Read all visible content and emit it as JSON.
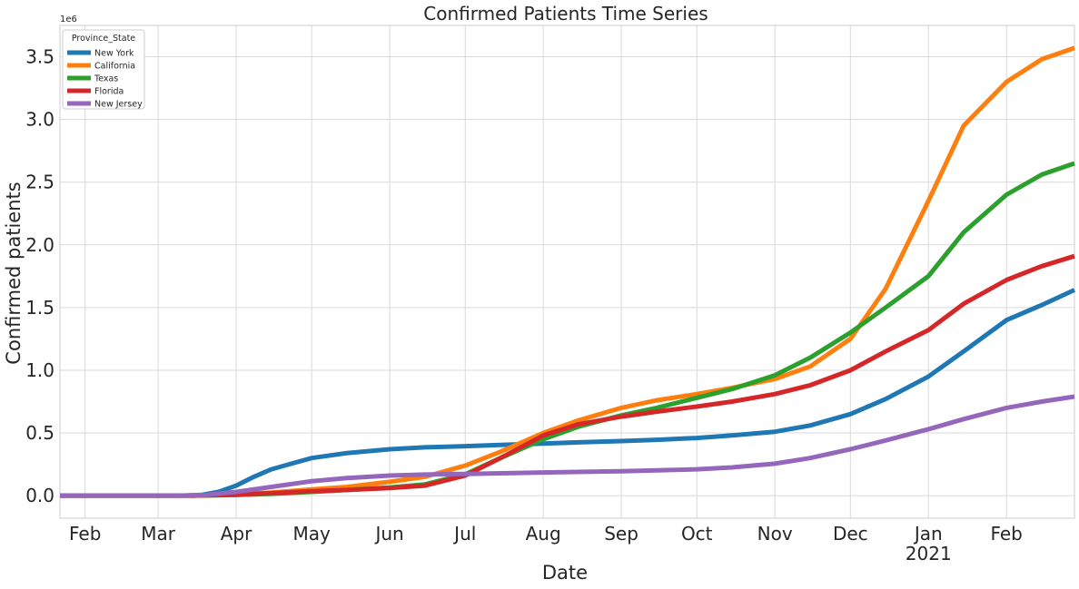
{
  "chart_data": {
    "type": "line",
    "title": "Confirmed Patients Time Series",
    "xlabel": "Date",
    "ylabel": "Confirmed patients",
    "y_offset_label": "1e6",
    "ylim": [
      -0.18,
      3.75
    ],
    "yticks": [
      0.0,
      0.5,
      1.0,
      1.5,
      2.0,
      2.5,
      3.0,
      3.5
    ],
    "ytick_labels": [
      "0.0",
      "0.5",
      "1.0",
      "1.5",
      "2.0",
      "2.5",
      "3.0",
      "3.5"
    ],
    "xlim": [
      "2020-01-22",
      "2021-02-28"
    ],
    "xticks": [
      {
        "date": "2020-02-01",
        "label": "Feb",
        "sub": ""
      },
      {
        "date": "2020-03-01",
        "label": "Mar",
        "sub": ""
      },
      {
        "date": "2020-04-01",
        "label": "Apr",
        "sub": ""
      },
      {
        "date": "2020-05-01",
        "label": "May",
        "sub": ""
      },
      {
        "date": "2020-06-01",
        "label": "Jun",
        "sub": ""
      },
      {
        "date": "2020-07-01",
        "label": "Jul",
        "sub": ""
      },
      {
        "date": "2020-08-01",
        "label": "Aug",
        "sub": ""
      },
      {
        "date": "2020-09-01",
        "label": "Sep",
        "sub": ""
      },
      {
        "date": "2020-10-01",
        "label": "Oct",
        "sub": ""
      },
      {
        "date": "2020-11-01",
        "label": "Nov",
        "sub": ""
      },
      {
        "date": "2020-12-01",
        "label": "Dec",
        "sub": ""
      },
      {
        "date": "2021-01-01",
        "label": "Jan",
        "sub": "2021"
      },
      {
        "date": "2021-02-01",
        "label": "Feb",
        "sub": ""
      }
    ],
    "grid": true,
    "legend": {
      "title": "Province_State",
      "placement": "upper-left"
    },
    "series": [
      {
        "name": "New York",
        "color": "#1f77b4",
        "points": [
          [
            "2020-01-22",
            0
          ],
          [
            "2020-03-10",
            0
          ],
          [
            "2020-03-18",
            0.005
          ],
          [
            "2020-03-25",
            0.03
          ],
          [
            "2020-04-01",
            0.08
          ],
          [
            "2020-04-08",
            0.15
          ],
          [
            "2020-04-15",
            0.21
          ],
          [
            "2020-04-22",
            0.25
          ],
          [
            "2020-05-01",
            0.3
          ],
          [
            "2020-05-15",
            0.34
          ],
          [
            "2020-06-01",
            0.37
          ],
          [
            "2020-06-15",
            0.385
          ],
          [
            "2020-07-01",
            0.395
          ],
          [
            "2020-07-15",
            0.405
          ],
          [
            "2020-08-01",
            0.415
          ],
          [
            "2020-08-15",
            0.425
          ],
          [
            "2020-09-01",
            0.435
          ],
          [
            "2020-09-15",
            0.445
          ],
          [
            "2020-10-01",
            0.46
          ],
          [
            "2020-10-15",
            0.48
          ],
          [
            "2020-11-01",
            0.51
          ],
          [
            "2020-11-15",
            0.56
          ],
          [
            "2020-12-01",
            0.65
          ],
          [
            "2020-12-15",
            0.77
          ],
          [
            "2021-01-01",
            0.95
          ],
          [
            "2021-01-15",
            1.15
          ],
          [
            "2021-02-01",
            1.4
          ],
          [
            "2021-02-15",
            1.52
          ],
          [
            "2021-02-28",
            1.64
          ]
        ]
      },
      {
        "name": "California",
        "color": "#ff7f0e",
        "points": [
          [
            "2020-01-22",
            0
          ],
          [
            "2020-03-15",
            0
          ],
          [
            "2020-04-01",
            0.01
          ],
          [
            "2020-04-15",
            0.025
          ],
          [
            "2020-05-01",
            0.05
          ],
          [
            "2020-05-15",
            0.07
          ],
          [
            "2020-06-01",
            0.11
          ],
          [
            "2020-06-15",
            0.15
          ],
          [
            "2020-07-01",
            0.24
          ],
          [
            "2020-07-15",
            0.35
          ],
          [
            "2020-08-01",
            0.5
          ],
          [
            "2020-08-15",
            0.6
          ],
          [
            "2020-09-01",
            0.7
          ],
          [
            "2020-09-15",
            0.76
          ],
          [
            "2020-10-01",
            0.81
          ],
          [
            "2020-10-15",
            0.86
          ],
          [
            "2020-11-01",
            0.93
          ],
          [
            "2020-11-15",
            1.03
          ],
          [
            "2020-12-01",
            1.25
          ],
          [
            "2020-12-15",
            1.65
          ],
          [
            "2021-01-01",
            2.35
          ],
          [
            "2021-01-15",
            2.95
          ],
          [
            "2021-02-01",
            3.3
          ],
          [
            "2021-02-15",
            3.48
          ],
          [
            "2021-02-28",
            3.57
          ]
        ]
      },
      {
        "name": "Texas",
        "color": "#2ca02c",
        "points": [
          [
            "2020-01-22",
            0
          ],
          [
            "2020-03-15",
            0
          ],
          [
            "2020-04-01",
            0.005
          ],
          [
            "2020-04-15",
            0.015
          ],
          [
            "2020-05-01",
            0.03
          ],
          [
            "2020-05-15",
            0.045
          ],
          [
            "2020-06-01",
            0.065
          ],
          [
            "2020-06-15",
            0.09
          ],
          [
            "2020-07-01",
            0.17
          ],
          [
            "2020-07-15",
            0.3
          ],
          [
            "2020-08-01",
            0.45
          ],
          [
            "2020-08-15",
            0.55
          ],
          [
            "2020-09-01",
            0.64
          ],
          [
            "2020-09-15",
            0.7
          ],
          [
            "2020-10-01",
            0.78
          ],
          [
            "2020-10-15",
            0.85
          ],
          [
            "2020-11-01",
            0.96
          ],
          [
            "2020-11-15",
            1.1
          ],
          [
            "2020-12-01",
            1.3
          ],
          [
            "2020-12-15",
            1.5
          ],
          [
            "2021-01-01",
            1.75
          ],
          [
            "2021-01-15",
            2.1
          ],
          [
            "2021-02-01",
            2.4
          ],
          [
            "2021-02-15",
            2.56
          ],
          [
            "2021-02-28",
            2.65
          ]
        ]
      },
      {
        "name": "Florida",
        "color": "#d62728",
        "points": [
          [
            "2020-01-22",
            0
          ],
          [
            "2020-03-15",
            0
          ],
          [
            "2020-04-01",
            0.008
          ],
          [
            "2020-04-15",
            0.02
          ],
          [
            "2020-05-01",
            0.035
          ],
          [
            "2020-05-15",
            0.045
          ],
          [
            "2020-06-01",
            0.06
          ],
          [
            "2020-06-15",
            0.08
          ],
          [
            "2020-07-01",
            0.16
          ],
          [
            "2020-07-15",
            0.3
          ],
          [
            "2020-08-01",
            0.48
          ],
          [
            "2020-08-15",
            0.57
          ],
          [
            "2020-09-01",
            0.63
          ],
          [
            "2020-09-15",
            0.67
          ],
          [
            "2020-10-01",
            0.71
          ],
          [
            "2020-10-15",
            0.75
          ],
          [
            "2020-11-01",
            0.81
          ],
          [
            "2020-11-15",
            0.88
          ],
          [
            "2020-12-01",
            1.0
          ],
          [
            "2020-12-15",
            1.15
          ],
          [
            "2021-01-01",
            1.32
          ],
          [
            "2021-01-15",
            1.53
          ],
          [
            "2021-02-01",
            1.72
          ],
          [
            "2021-02-15",
            1.83
          ],
          [
            "2021-02-28",
            1.91
          ]
        ]
      },
      {
        "name": "New Jersey",
        "color": "#9467bd",
        "points": [
          [
            "2020-01-22",
            0
          ],
          [
            "2020-03-10",
            0
          ],
          [
            "2020-03-20",
            0.005
          ],
          [
            "2020-04-01",
            0.03
          ],
          [
            "2020-04-15",
            0.07
          ],
          [
            "2020-05-01",
            0.115
          ],
          [
            "2020-05-15",
            0.14
          ],
          [
            "2020-06-01",
            0.16
          ],
          [
            "2020-06-15",
            0.168
          ],
          [
            "2020-07-01",
            0.173
          ],
          [
            "2020-08-01",
            0.185
          ],
          [
            "2020-09-01",
            0.195
          ],
          [
            "2020-10-01",
            0.21
          ],
          [
            "2020-10-15",
            0.225
          ],
          [
            "2020-11-01",
            0.255
          ],
          [
            "2020-11-15",
            0.3
          ],
          [
            "2020-12-01",
            0.37
          ],
          [
            "2020-12-15",
            0.44
          ],
          [
            "2021-01-01",
            0.53
          ],
          [
            "2021-01-15",
            0.61
          ],
          [
            "2021-02-01",
            0.7
          ],
          [
            "2021-02-15",
            0.75
          ],
          [
            "2021-02-28",
            0.79
          ]
        ]
      }
    ]
  }
}
